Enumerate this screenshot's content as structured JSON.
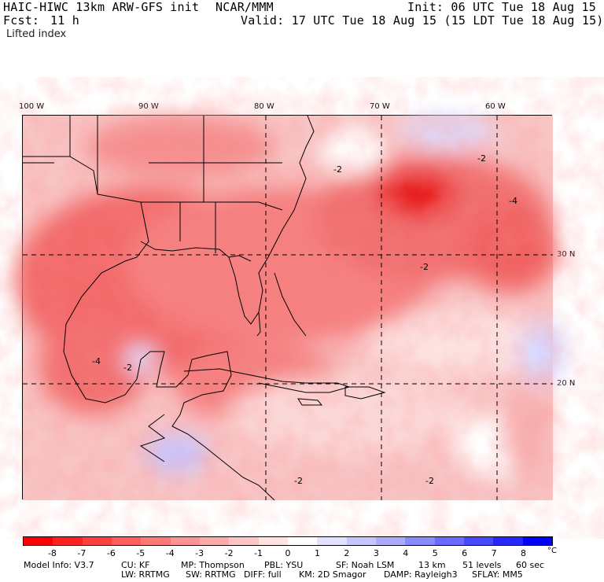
{
  "header": {
    "model": "HAIC-HIWC 13km ARW-GFS init",
    "org": "NCAR/MMM",
    "init": "Init: 06 UTC Tue 18 Aug 15",
    "fcst_label": "Fcst:",
    "fcst_value": "11 h",
    "valid": "Valid: 17 UTC Tue 18 Aug 15 (15 LDT Tue 18 Aug 15)",
    "field": "Lifted index"
  },
  "map": {
    "lon_labels": [
      "100 W",
      "90 W",
      "80 W",
      "70 W",
      "60 W"
    ],
    "lat_labels": [
      "30 N",
      "20 N"
    ],
    "contour_labels": [
      "-2",
      "-4",
      "-2",
      "-2",
      "-2",
      "-2",
      "-4",
      "-2"
    ]
  },
  "colorbar": {
    "ticks": [
      "-8",
      "-7",
      "-6",
      "-5",
      "-4",
      "-3",
      "-2",
      "-1",
      "0",
      "1",
      "2",
      "3",
      "4",
      "5",
      "6",
      "7",
      "8"
    ],
    "unit": "°C",
    "colors": [
      "#ff0000",
      "#ff2020",
      "#ff4040",
      "#ff5e5e",
      "#ff7878",
      "#ff9292",
      "#ffaaaa",
      "#ffc6c6",
      "#ffe2e2",
      "#ffffff",
      "#e2e2ff",
      "#c6c6ff",
      "#aaaaff",
      "#8a8aff",
      "#6a6aff",
      "#4848ff",
      "#2626ff",
      "#0000ff"
    ]
  },
  "footer": {
    "line1": [
      "Model Info: V3.7",
      "CU: KF",
      "MP: Thompson",
      "PBL: YSU",
      "SF: Noah LSM",
      "13 km",
      "51 levels",
      "60 sec"
    ],
    "line2": [
      "LW: RRTMG",
      "SW: RRTMG",
      "DIFF: full",
      "KM: 2D Smagor",
      "DAMP: Rayleigh3",
      "SFLAY: MM5"
    ]
  }
}
